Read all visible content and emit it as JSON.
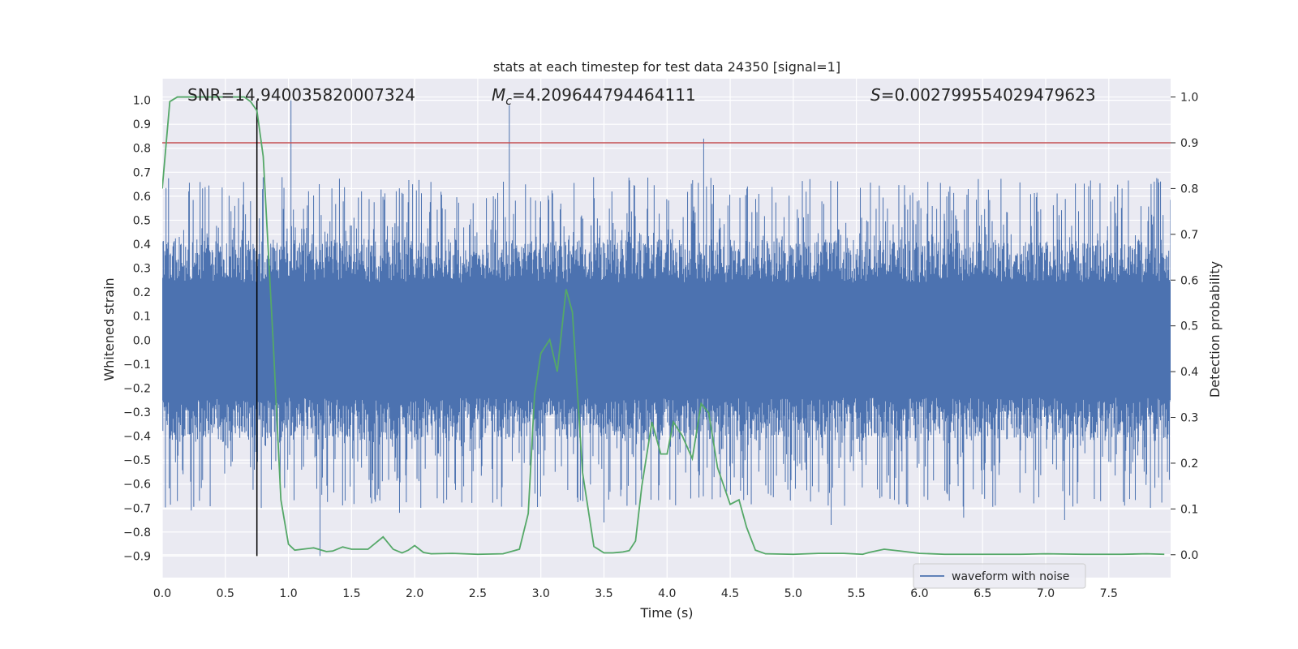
{
  "chart_data": {
    "type": "line",
    "title": "stats at each timestep for test data 24350 [signal=1]",
    "xlabel": "Time (s)",
    "ylabel_left": "Whitened strain",
    "ylabel_right": "Detection probability",
    "xlim": [
      0.0,
      7.99
    ],
    "ylim_left": [
      -0.99,
      1.09
    ],
    "ylim_right": [
      -0.05,
      1.04
    ],
    "x_ticks": [
      "0.0",
      "0.5",
      "1.0",
      "1.5",
      "2.0",
      "2.5",
      "3.0",
      "3.5",
      "4.0",
      "4.5",
      "5.0",
      "5.5",
      "6.0",
      "6.5",
      "7.0",
      "7.5"
    ],
    "x_tick_values": [
      0.0,
      0.5,
      1.0,
      1.5,
      2.0,
      2.5,
      3.0,
      3.5,
      4.0,
      4.5,
      5.0,
      5.5,
      6.0,
      6.5,
      7.0,
      7.5
    ],
    "y_ticks_left": [
      "1.0",
      "0.9",
      "0.8",
      "0.7",
      "0.6",
      "0.5",
      "0.4",
      "0.3",
      "0.2",
      "0.1",
      "0.0",
      "−0.1",
      "−0.2",
      "−0.3",
      "−0.4",
      "−0.5",
      "−0.6",
      "−0.7",
      "−0.8",
      "−0.9"
    ],
    "y_tick_values_left": [
      1.0,
      0.9,
      0.8,
      0.7,
      0.6,
      0.5,
      0.4,
      0.3,
      0.2,
      0.1,
      0.0,
      -0.1,
      -0.2,
      -0.3,
      -0.4,
      -0.5,
      -0.6,
      -0.7,
      -0.8,
      -0.9
    ],
    "y_ticks_right": [
      "1.0",
      "0.9",
      "0.8",
      "0.7",
      "0.6",
      "0.5",
      "0.4",
      "0.3",
      "0.2",
      "0.1",
      "0.0"
    ],
    "y_tick_values_right": [
      1.0,
      0.9,
      0.8,
      0.7,
      0.6,
      0.5,
      0.4,
      0.3,
      0.2,
      0.1,
      0.0
    ],
    "annotations": {
      "snr": "SNR=14.940035820007324",
      "mc_symbol": "M",
      "mc_sub": "c",
      "mc_value": "=4.209644794464111",
      "s_symbol": "S",
      "s_value": "=0.002799554029479623"
    },
    "legend": {
      "label": "waveform with noise",
      "position": "lower-right"
    },
    "threshold_prob": 0.9,
    "marker_time": 0.75,
    "waveform": {
      "name": "waveform with noise",
      "samples": 1600,
      "band_strain": [
        -0.24,
        0.24
      ],
      "typical_peak": [
        0.25,
        0.68
      ],
      "typical_trough": [
        -0.25,
        -0.7
      ],
      "spikes": [
        {
          "t": 1.02,
          "v": 1.0
        },
        {
          "t": 2.75,
          "v": 0.98
        },
        {
          "t": 4.29,
          "v": 0.84
        },
        {
          "t": 1.25,
          "v": -0.9
        },
        {
          "t": 5.3,
          "v": -0.77
        },
        {
          "t": 3.5,
          "v": -0.76
        },
        {
          "t": 7.15,
          "v": -0.75
        },
        {
          "t": 6.35,
          "v": -0.74
        },
        {
          "t": 0.23,
          "v": -0.71
        },
        {
          "t": 1.88,
          "v": -0.72
        }
      ]
    },
    "probability": {
      "name": "detection probability",
      "x": [
        0.0,
        0.06,
        0.12,
        0.2,
        0.3,
        0.4,
        0.5,
        0.6,
        0.65,
        0.7,
        0.75,
        0.8,
        0.88,
        0.94,
        1.0,
        1.05,
        1.2,
        1.3,
        1.35,
        1.43,
        1.5,
        1.63,
        1.75,
        1.83,
        1.9,
        1.95,
        2.0,
        2.07,
        2.13,
        2.3,
        2.5,
        2.7,
        2.83,
        2.9,
        2.95,
        3.0,
        3.07,
        3.13,
        3.2,
        3.25,
        3.33,
        3.42,
        3.5,
        3.57,
        3.65,
        3.7,
        3.75,
        3.8,
        3.88,
        3.95,
        4.0,
        4.05,
        4.12,
        4.2,
        4.27,
        4.33,
        4.4,
        4.5,
        4.57,
        4.63,
        4.7,
        4.78,
        5.0,
        5.2,
        5.4,
        5.55,
        5.6,
        5.72,
        5.85,
        6.0,
        6.2,
        6.5,
        6.8,
        7.0,
        7.3,
        7.6,
        7.8,
        7.94
      ],
      "y": [
        0.8,
        0.99,
        1.0,
        1.0,
        1.0,
        1.0,
        1.0,
        1.0,
        1.0,
        0.99,
        0.97,
        0.87,
        0.46,
        0.12,
        0.023,
        0.01,
        0.015,
        0.007,
        0.008,
        0.017,
        0.012,
        0.012,
        0.039,
        0.012,
        0.004,
        0.01,
        0.02,
        0.005,
        0.002,
        0.003,
        0.001,
        0.002,
        0.012,
        0.09,
        0.35,
        0.44,
        0.47,
        0.4,
        0.58,
        0.53,
        0.18,
        0.018,
        0.004,
        0.004,
        0.006,
        0.009,
        0.03,
        0.15,
        0.29,
        0.22,
        0.22,
        0.29,
        0.26,
        0.21,
        0.33,
        0.31,
        0.19,
        0.11,
        0.12,
        0.06,
        0.01,
        0.002,
        0.001,
        0.003,
        0.003,
        0.001,
        0.005,
        0.012,
        0.008,
        0.003,
        0.001,
        0.001,
        0.001,
        0.002,
        0.001,
        0.001,
        0.002,
        0.001
      ]
    },
    "colors": {
      "background": "#eaeaf2",
      "grid": "#ffffff",
      "waveform": "#4c72b0",
      "probability": "#55a868",
      "threshold": "#c44e52",
      "marker": "#000000",
      "text": "#262626"
    }
  }
}
